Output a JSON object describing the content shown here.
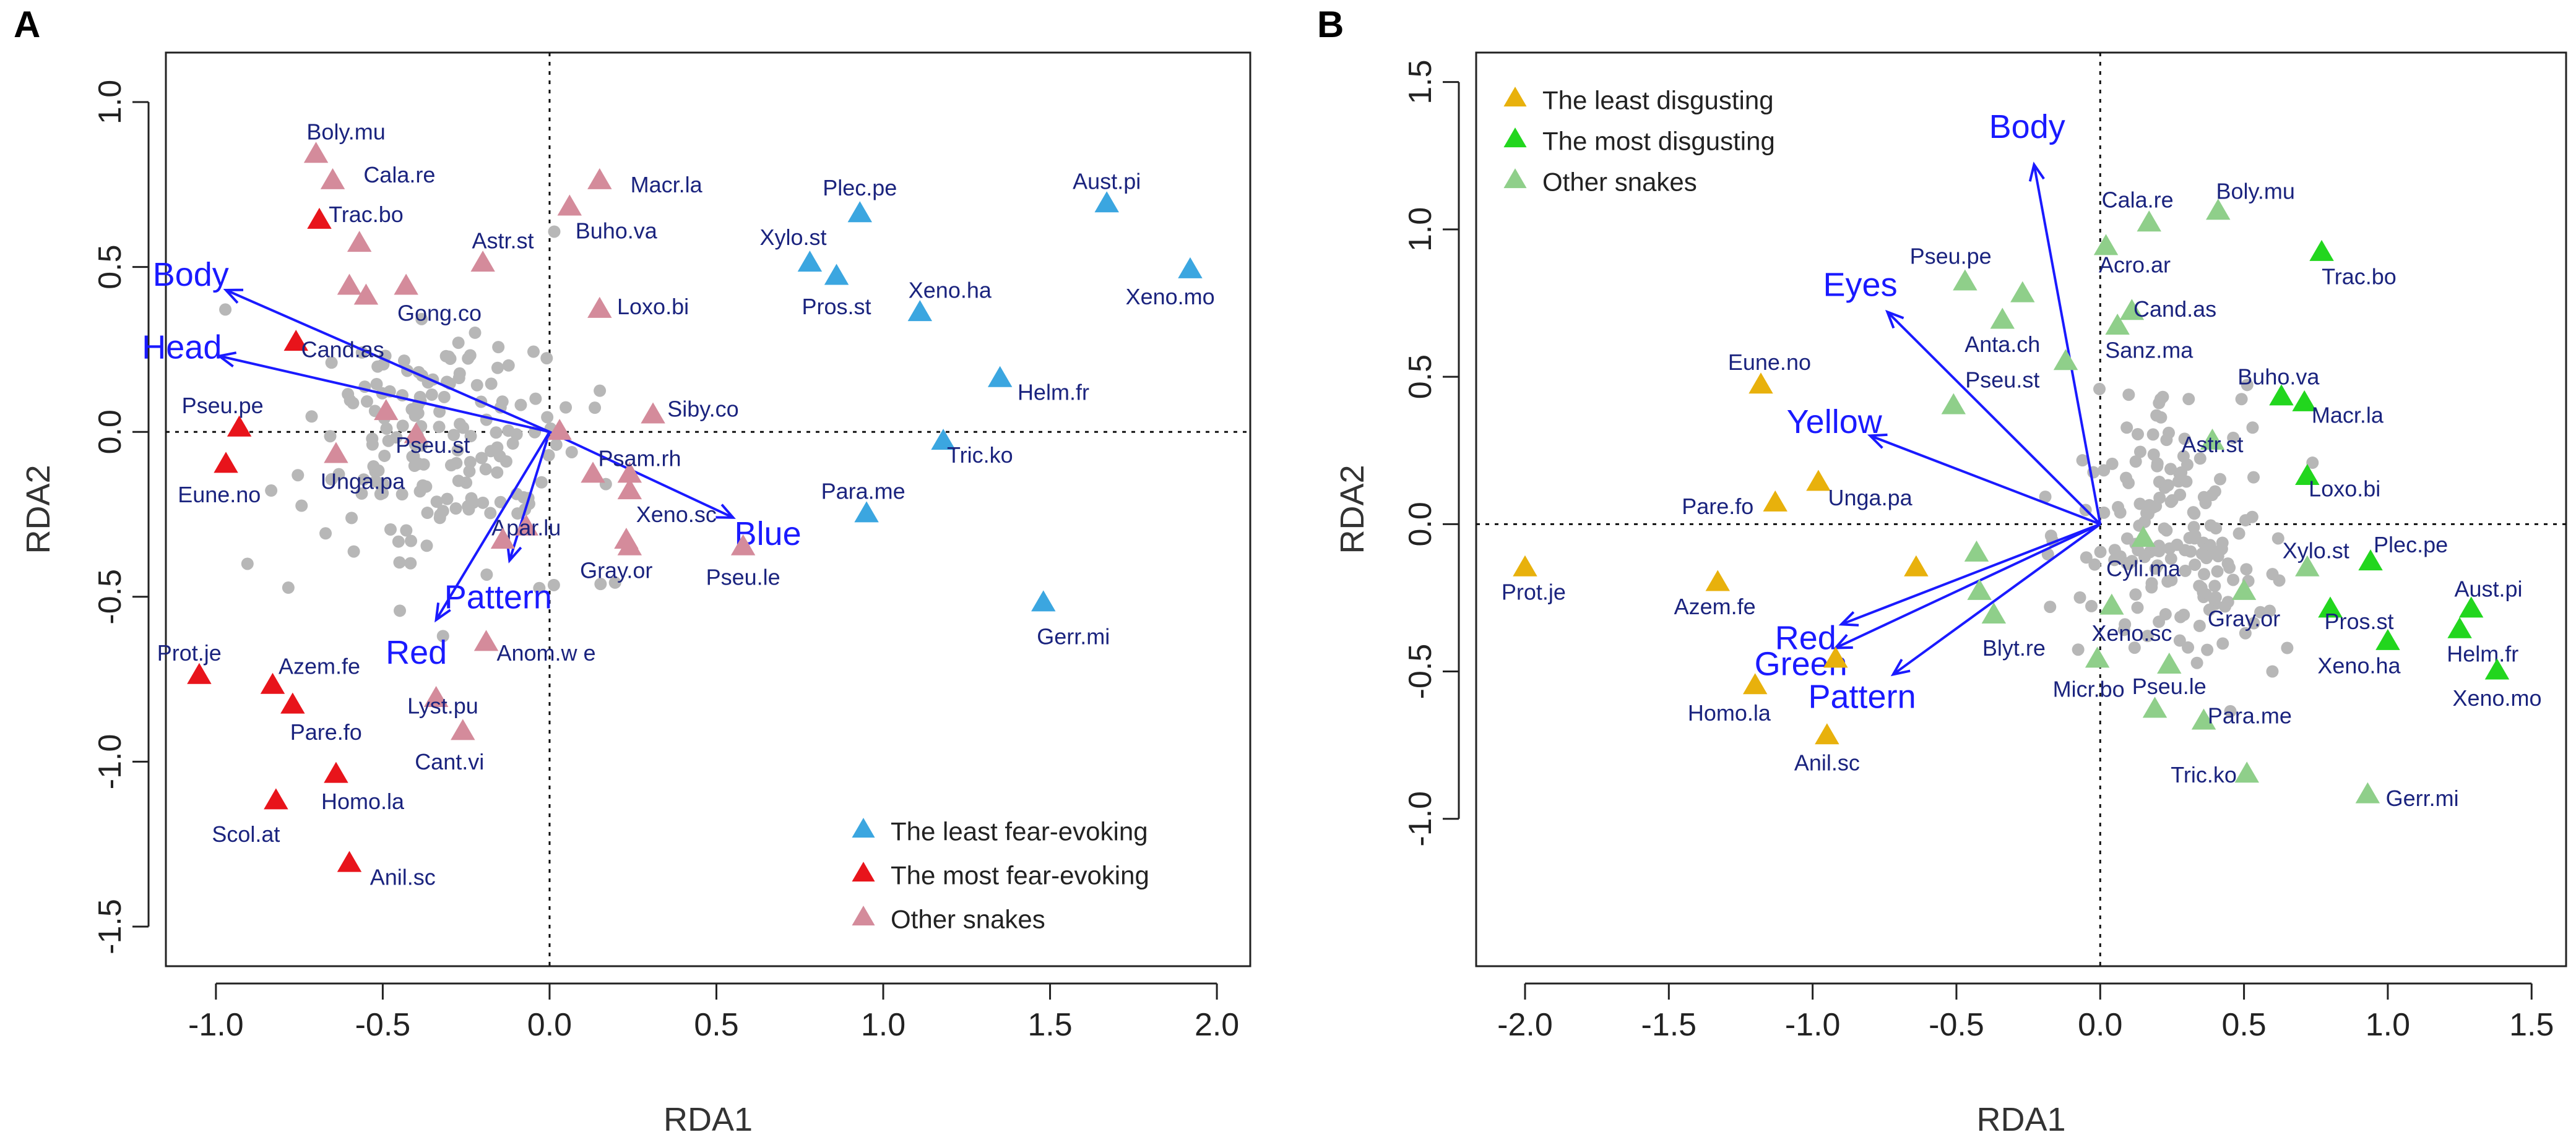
{
  "chart_data": [
    {
      "type": "scatter",
      "panel": "A",
      "xlabel": "RDA1",
      "ylabel": "RDA2",
      "xlim": [
        -1.15,
        2.1
      ],
      "ylim": [
        -1.62,
        1.15
      ],
      "xticks": [
        -1.0,
        -0.5,
        0.0,
        0.5,
        1.0,
        1.5,
        2.0
      ],
      "xtick_labels": [
        "-1.0",
        "-0.5",
        "0.0",
        "0.5",
        "1.0",
        "1.5",
        "2.0"
      ],
      "yticks": [
        -1.5,
        -1.0,
        -0.5,
        0.0,
        0.5,
        1.0
      ],
      "ytick_labels": [
        "-1.5",
        "-1.0",
        "-0.5",
        "0.0",
        "0.5",
        "1.0"
      ],
      "colors": {
        "least": "#3ba6e0",
        "most": "#e8141b",
        "other": "#d48b9b",
        "background": "#b7b7b7",
        "vector": "#1a1aff",
        "species_text": "#1a237e"
      },
      "legend": [
        {
          "group": "least",
          "label": "The least fear-evoking"
        },
        {
          "group": "most",
          "label": "The most fear-evoking"
        },
        {
          "group": "other",
          "label": "Other snakes"
        }
      ],
      "vectors": [
        {
          "label": "Body",
          "x": -0.97,
          "y": 0.43
        },
        {
          "label": "Head",
          "x": -0.99,
          "y": 0.23
        },
        {
          "label": "Blue",
          "x": 0.55,
          "y": -0.26
        },
        {
          "label": "Pattern",
          "x": -0.12,
          "y": -0.39
        },
        {
          "label": "Red",
          "x": -0.34,
          "y": -0.57
        }
      ],
      "species": [
        {
          "name": "Aust.pi",
          "x": 1.67,
          "y": 0.69,
          "group": "least",
          "lx": 1.67,
          "ly": 0.76
        },
        {
          "name": "Plec.pe",
          "x": 0.93,
          "y": 0.66,
          "group": "least",
          "lx": 0.93,
          "ly": 0.74
        },
        {
          "name": "Xylo.st",
          "x": 0.78,
          "y": 0.51,
          "group": "least",
          "lx": 0.73,
          "ly": 0.59
        },
        {
          "name": "Pros.st",
          "x": 0.86,
          "y": 0.47,
          "group": "least",
          "lx": 0.86,
          "ly": 0.38
        },
        {
          "name": "Xeno.ha",
          "x": 1.11,
          "y": 0.36,
          "group": "least",
          "lx": 1.2,
          "ly": 0.43
        },
        {
          "name": "Xeno.mo",
          "x": 1.92,
          "y": 0.49,
          "group": "least",
          "lx": 1.86,
          "ly": 0.41
        },
        {
          "name": "Helm.fr",
          "x": 1.35,
          "y": 0.16,
          "group": "least",
          "lx": 1.51,
          "ly": 0.12
        },
        {
          "name": "Tric.ko",
          "x": 1.18,
          "y": -0.03,
          "group": "least",
          "lx": 1.29,
          "ly": -0.07
        },
        {
          "name": "Para.me",
          "x": 0.95,
          "y": -0.25,
          "group": "least",
          "lx": 0.94,
          "ly": -0.18
        },
        {
          "name": "Gerr.mi",
          "x": 1.48,
          "y": -0.52,
          "group": "least",
          "lx": 1.57,
          "ly": -0.62
        },
        {
          "name": "Trac.bo",
          "x": -0.69,
          "y": 0.64,
          "group": "most",
          "lx": -0.55,
          "ly": 0.66
        },
        {
          "name": "Cand.as",
          "x": -0.76,
          "y": 0.27,
          "group": "most",
          "lx": -0.62,
          "ly": 0.25
        },
        {
          "name": "Pseu.pe",
          "x": -0.93,
          "y": 0.01,
          "group": "most",
          "lx": -0.98,
          "ly": 0.08
        },
        {
          "name": "Eune.no",
          "x": -0.97,
          "y": -0.1,
          "group": "most",
          "lx": -0.99,
          "ly": -0.19
        },
        {
          "name": "Prot.je",
          "x": -1.05,
          "y": -0.74,
          "group": "most",
          "lx": -1.08,
          "ly": -0.67
        },
        {
          "name": "Azem.fe",
          "x": -0.83,
          "y": -0.77,
          "group": "most",
          "lx": -0.69,
          "ly": -0.71
        },
        {
          "name": "Pare.fo",
          "x": -0.77,
          "y": -0.83,
          "group": "most",
          "lx": -0.67,
          "ly": -0.91
        },
        {
          "name": "Homo.la",
          "x": -0.64,
          "y": -1.04,
          "group": "most",
          "lx": -0.56,
          "ly": -1.12
        },
        {
          "name": "Scol.at",
          "x": -0.82,
          "y": -1.12,
          "group": "most",
          "lx": -0.91,
          "ly": -1.22
        },
        {
          "name": "Anil.sc",
          "x": -0.6,
          "y": -1.31,
          "group": "most",
          "lx": -0.44,
          "ly": -1.35
        },
        {
          "name": "Boly.mu",
          "x": -0.7,
          "y": 0.84,
          "group": "other",
          "lx": -0.61,
          "ly": 0.91
        },
        {
          "name": "Cala.re",
          "x": -0.65,
          "y": 0.76,
          "group": "other",
          "lx": -0.45,
          "ly": 0.78
        },
        {
          "name": "",
          "x": -0.57,
          "y": 0.57,
          "group": "other",
          "lx": 0,
          "ly": 0
        },
        {
          "name": "",
          "x": -0.6,
          "y": 0.44,
          "group": "other",
          "lx": 0,
          "ly": 0
        },
        {
          "name": "",
          "x": -0.55,
          "y": 0.41,
          "group": "other",
          "lx": 0,
          "ly": 0
        },
        {
          "name": "Astr.st",
          "x": -0.2,
          "y": 0.51,
          "group": "other",
          "lx": -0.14,
          "ly": 0.58
        },
        {
          "name": "Gong.co",
          "x": -0.43,
          "y": 0.44,
          "group": "other",
          "lx": -0.33,
          "ly": 0.36
        },
        {
          "name": "",
          "x": -0.49,
          "y": 0.06,
          "group": "other",
          "lx": 0,
          "ly": 0
        },
        {
          "name": "Pseu.st",
          "x": -0.4,
          "y": -0.01,
          "group": "other",
          "lx": -0.35,
          "ly": -0.04
        },
        {
          "name": "Unga.pa",
          "x": -0.64,
          "y": -0.07,
          "group": "other",
          "lx": -0.56,
          "ly": -0.15
        },
        {
          "name": "Macr.la",
          "x": 0.15,
          "y": 0.76,
          "group": "other",
          "lx": 0.35,
          "ly": 0.75
        },
        {
          "name": "Buho.va",
          "x": 0.06,
          "y": 0.68,
          "group": "other",
          "lx": 0.2,
          "ly": 0.61
        },
        {
          "name": "Loxo.bi",
          "x": 0.15,
          "y": 0.37,
          "group": "other",
          "lx": 0.31,
          "ly": 0.38
        },
        {
          "name": "Siby.co",
          "x": 0.31,
          "y": 0.05,
          "group": "other",
          "lx": 0.46,
          "ly": 0.07
        },
        {
          "name": "",
          "x": 0.03,
          "y": 0.0,
          "group": "other",
          "lx": 0,
          "ly": 0
        },
        {
          "name": "Psam.rh",
          "x": 0.24,
          "y": -0.13,
          "group": "other",
          "lx": 0.27,
          "ly": -0.08
        },
        {
          "name": "",
          "x": 0.13,
          "y": -0.13,
          "group": "other",
          "lx": 0,
          "ly": 0
        },
        {
          "name": "",
          "x": 0.24,
          "y": -0.18,
          "group": "other",
          "lx": 0,
          "ly": 0
        },
        {
          "name": "Xeno.sc",
          "x": 0.23,
          "y": -0.33,
          "group": "other",
          "lx": 0.38,
          "ly": -0.25
        },
        {
          "name": "Gray.or",
          "x": 0.24,
          "y": -0.35,
          "group": "other",
          "lx": 0.2,
          "ly": -0.42
        },
        {
          "name": "Pseu.le",
          "x": 0.58,
          "y": -0.35,
          "group": "other",
          "lx": 0.58,
          "ly": -0.44
        },
        {
          "name": "Apar.lu",
          "x": -0.07,
          "y": -0.29,
          "group": "other",
          "lx": -0.07,
          "ly": -0.29
        },
        {
          "name": "",
          "x": -0.14,
          "y": -0.33,
          "group": "other",
          "lx": 0,
          "ly": 0
        },
        {
          "name": "Anom.w e",
          "x": -0.19,
          "y": -0.64,
          "group": "other",
          "lx": -0.01,
          "ly": -0.67
        },
        {
          "name": "Lyst.pu",
          "x": -0.34,
          "y": -0.81,
          "group": "other",
          "lx": -0.32,
          "ly": -0.83
        },
        {
          "name": "Cant.vi",
          "x": -0.26,
          "y": -0.91,
          "group": "other",
          "lx": -0.3,
          "ly": -1.0
        }
      ]
    },
    {
      "type": "scatter",
      "panel": "B",
      "xlabel": "RDA1",
      "ylabel": "RDA2",
      "xlim": [
        -2.17,
        1.62
      ],
      "ylim": [
        -1.5,
        1.6
      ],
      "xticks": [
        -2.0,
        -1.5,
        -1.0,
        -0.5,
        0.0,
        0.5,
        1.0,
        1.5
      ],
      "xtick_labels": [
        "-2.0",
        "-1.5",
        "-1.0",
        "-0.5",
        "0.0",
        "0.5",
        "1.0",
        "1.5"
      ],
      "yticks": [
        -1.0,
        -0.5,
        0.0,
        0.5,
        1.0,
        1.5
      ],
      "ytick_labels": [
        "-1.0",
        "-0.5",
        "0.0",
        "0.5",
        "1.0",
        "1.5"
      ],
      "colors": {
        "least": "#e8b10c",
        "most": "#22d61e",
        "other": "#8fcf8a",
        "background": "#b7b7b7",
        "vector": "#1a1aff",
        "species_text": "#1a237e"
      },
      "legend": [
        {
          "group": "least",
          "label": "The least disgusting"
        },
        {
          "group": "most",
          "label": "The most disgusting"
        },
        {
          "group": "other",
          "label": "Other snakes"
        }
      ],
      "vectors": [
        {
          "label": "Body",
          "x": -0.23,
          "y": 1.22
        },
        {
          "label": "Eyes",
          "x": -0.74,
          "y": 0.72
        },
        {
          "label": "Yellow",
          "x": -0.8,
          "y": 0.3
        },
        {
          "label": "Red",
          "x": -0.9,
          "y": -0.34
        },
        {
          "label": "Green",
          "x": -0.92,
          "y": -0.42
        },
        {
          "label": "Pattern",
          "x": -0.72,
          "y": -0.51
        }
      ],
      "species": [
        {
          "name": "Eune.no",
          "x": -1.18,
          "y": 0.47,
          "group": "least",
          "lx": -1.15,
          "ly": 0.55
        },
        {
          "name": "Unga.pa",
          "x": -0.98,
          "y": 0.14,
          "group": "least",
          "lx": -0.8,
          "ly": 0.09
        },
        {
          "name": "Pare.fo",
          "x": -1.13,
          "y": 0.07,
          "group": "least",
          "lx": -1.33,
          "ly": 0.06
        },
        {
          "name": "Prot.je",
          "x": -2.0,
          "y": -0.15,
          "group": "least",
          "lx": -1.97,
          "ly": -0.23
        },
        {
          "name": "Azem.fe",
          "x": -1.33,
          "y": -0.2,
          "group": "least",
          "lx": -1.34,
          "ly": -0.28
        },
        {
          "name": "",
          "x": -0.64,
          "y": -0.15,
          "group": "least",
          "lx": 0,
          "ly": 0
        },
        {
          "name": "",
          "x": -0.92,
          "y": -0.46,
          "group": "least",
          "lx": 0,
          "ly": 0
        },
        {
          "name": "Homo.la",
          "x": -1.2,
          "y": -0.55,
          "group": "least",
          "lx": -1.29,
          "ly": -0.64
        },
        {
          "name": "Anil.sc",
          "x": -0.95,
          "y": -0.72,
          "group": "least",
          "lx": -0.95,
          "ly": -0.81
        },
        {
          "name": "Trac.bo",
          "x": 0.77,
          "y": 0.92,
          "group": "most",
          "lx": 0.9,
          "ly": 0.84
        },
        {
          "name": "Buho.va",
          "x": 0.63,
          "y": 0.43,
          "group": "most",
          "lx": 0.62,
          "ly": 0.5
        },
        {
          "name": "Macr.la",
          "x": 0.71,
          "y": 0.41,
          "group": "most",
          "lx": 0.86,
          "ly": 0.37
        },
        {
          "name": "Loxo.bi",
          "x": 0.72,
          "y": 0.16,
          "group": "most",
          "lx": 0.85,
          "ly": 0.12
        },
        {
          "name": "Plec.pe",
          "x": 0.94,
          "y": -0.13,
          "group": "most",
          "lx": 1.08,
          "ly": -0.07
        },
        {
          "name": "Pros.st",
          "x": 0.8,
          "y": -0.29,
          "group": "most",
          "lx": 0.9,
          "ly": -0.33
        },
        {
          "name": "Aust.pi",
          "x": 1.29,
          "y": -0.29,
          "group": "most",
          "lx": 1.35,
          "ly": -0.22
        },
        {
          "name": "Xeno.ha",
          "x": 1.0,
          "y": -0.4,
          "group": "most",
          "lx": 0.9,
          "ly": -0.48
        },
        {
          "name": "Helm.fr",
          "x": 1.25,
          "y": -0.36,
          "group": "most",
          "lx": 1.33,
          "ly": -0.44
        },
        {
          "name": "Xeno.mo",
          "x": 1.38,
          "y": -0.5,
          "group": "most",
          "lx": 1.38,
          "ly": -0.59
        },
        {
          "name": "Boly.mu",
          "x": 0.41,
          "y": 1.06,
          "group": "other",
          "lx": 0.54,
          "ly": 1.13
        },
        {
          "name": "Cala.re",
          "x": 0.17,
          "y": 1.02,
          "group": "other",
          "lx": 0.13,
          "ly": 1.1
        },
        {
          "name": "Acro.ar",
          "x": 0.02,
          "y": 0.94,
          "group": "other",
          "lx": 0.12,
          "ly": 0.88
        },
        {
          "name": "Pseu.pe",
          "x": -0.47,
          "y": 0.82,
          "group": "other",
          "lx": -0.52,
          "ly": 0.91
        },
        {
          "name": "",
          "x": -0.27,
          "y": 0.78,
          "group": "other",
          "lx": 0,
          "ly": 0
        },
        {
          "name": "Cand.as",
          "x": 0.11,
          "y": 0.72,
          "group": "other",
          "lx": 0.26,
          "ly": 0.73
        },
        {
          "name": "Anta.ch",
          "x": -0.34,
          "y": 0.69,
          "group": "other",
          "lx": -0.34,
          "ly": 0.61
        },
        {
          "name": "Sanz.ma",
          "x": 0.06,
          "y": 0.67,
          "group": "other",
          "lx": 0.17,
          "ly": 0.59
        },
        {
          "name": "",
          "x": -0.12,
          "y": 0.55,
          "group": "other",
          "lx": 0,
          "ly": 0
        },
        {
          "name": "Pseu.st",
          "x": -0.51,
          "y": 0.4,
          "group": "other",
          "lx": -0.34,
          "ly": 0.49
        },
        {
          "name": "Astr.st",
          "x": 0.39,
          "y": 0.28,
          "group": "other",
          "lx": 0.39,
          "ly": 0.27
        },
        {
          "name": "Cyli.ma",
          "x": 0.15,
          "y": -0.05,
          "group": "other",
          "lx": 0.15,
          "ly": -0.15
        },
        {
          "name": "",
          "x": -0.43,
          "y": -0.1,
          "group": "other",
          "lx": 0,
          "ly": 0
        },
        {
          "name": "",
          "x": -0.42,
          "y": -0.23,
          "group": "other",
          "lx": 0,
          "ly": 0
        },
        {
          "name": "Blyt.re",
          "x": -0.37,
          "y": -0.31,
          "group": "other",
          "lx": -0.3,
          "ly": -0.42
        },
        {
          "name": "Xeno.sc",
          "x": 0.04,
          "y": -0.28,
          "group": "other",
          "lx": 0.11,
          "ly": -0.37
        },
        {
          "name": "Gray.or",
          "x": 0.5,
          "y": -0.23,
          "group": "other",
          "lx": 0.5,
          "ly": -0.32
        },
        {
          "name": "Xylo.st",
          "x": 0.72,
          "y": -0.15,
          "group": "other",
          "lx": 0.75,
          "ly": -0.09
        },
        {
          "name": "Micr.bo",
          "x": -0.01,
          "y": -0.46,
          "group": "other",
          "lx": -0.04,
          "ly": -0.56
        },
        {
          "name": "Pseu.le",
          "x": 0.24,
          "y": -0.48,
          "group": "other",
          "lx": 0.24,
          "ly": -0.55
        },
        {
          "name": "",
          "x": 0.19,
          "y": -0.63,
          "group": "other",
          "lx": 0,
          "ly": 0
        },
        {
          "name": "Para.me",
          "x": 0.36,
          "y": -0.67,
          "group": "other",
          "lx": 0.52,
          "ly": -0.65
        },
        {
          "name": "Tric.ko",
          "x": 0.51,
          "y": -0.85,
          "group": "other",
          "lx": 0.36,
          "ly": -0.85
        },
        {
          "name": "Gerr.mi",
          "x": 0.93,
          "y": -0.92,
          "group": "other",
          "lx": 1.12,
          "ly": -0.93
        }
      ]
    }
  ]
}
